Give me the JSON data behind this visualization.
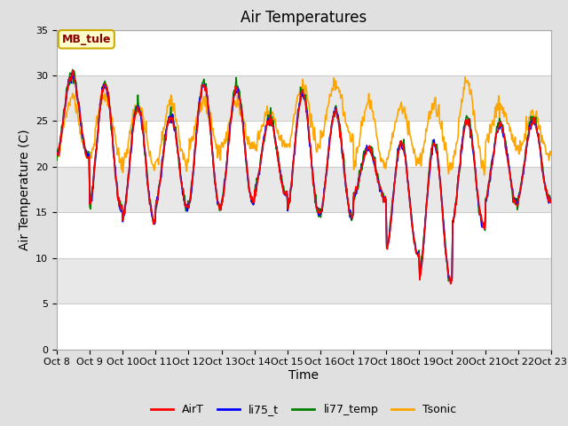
{
  "title": "Air Temperatures",
  "ylabel": "Air Temperature (C)",
  "xlabel": "Time",
  "ylim": [
    0,
    35
  ],
  "annotation_text": "MB_tule",
  "annotation_color": "#8B0000",
  "annotation_bg": "#FFFFCC",
  "annotation_border": "#CCAA00",
  "x_tick_labels": [
    "Oct 8",
    "Oct 9",
    "Oct 10",
    "Oct 11",
    "Oct 12",
    "Oct 13",
    "Oct 14",
    "Oct 15",
    "Oct 16",
    "Oct 17",
    "Oct 18",
    "Oct 19",
    "Oct 20",
    "Oct 21",
    "Oct 22",
    "Oct 23"
  ],
  "legend_labels": [
    "AirT",
    "li75_t",
    "li77_temp",
    "Tsonic"
  ],
  "legend_colors": [
    "red",
    "blue",
    "green",
    "orange"
  ],
  "line_width": 1.2,
  "bg_color": "#E0E0E0",
  "plot_bg": "#FFFFFF",
  "title_fontsize": 12,
  "label_fontsize": 10,
  "tick_fontsize": 8,
  "peak_vals": [
    30,
    29,
    26.5,
    25.5,
    29,
    28.5,
    25,
    28,
    26,
    22,
    22.5,
    22.5,
    25,
    24.5,
    25,
    25
  ],
  "trough_vals": [
    21,
    15.5,
    14,
    15.5,
    15.5,
    16,
    17,
    15,
    14.5,
    16.5,
    10.5,
    7.5,
    13.5,
    16,
    16.5,
    16
  ],
  "peak_sonic": [
    27.5,
    28,
    27,
    27,
    27,
    27,
    26,
    29,
    29,
    27,
    26.5,
    27,
    29.5,
    26.5,
    26,
    25.5
  ],
  "trough_sonic": [
    21,
    21,
    20,
    20,
    22,
    22,
    22,
    22,
    23,
    20,
    20.5,
    20,
    20,
    22.5,
    21,
    21
  ]
}
